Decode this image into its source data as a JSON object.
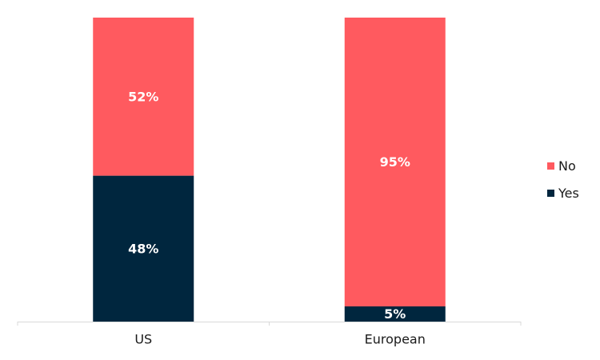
{
  "chart_data": {
    "type": "bar",
    "stacked": true,
    "categories": [
      "US",
      "European"
    ],
    "series": [
      {
        "name": "Yes",
        "values": [
          48,
          5
        ],
        "labels": [
          "48%",
          "5%"
        ],
        "color": "#00263e"
      },
      {
        "name": "No",
        "values": [
          52,
          95
        ],
        "labels": [
          "52%",
          "95%"
        ],
        "color": "#ff5a5f"
      }
    ],
    "ylim": [
      0,
      100
    ],
    "value_unit": "%",
    "legend_order": [
      "No",
      "Yes"
    ],
    "legend_position": "right",
    "grid": false,
    "title": "",
    "xlabel": "",
    "ylabel": ""
  }
}
